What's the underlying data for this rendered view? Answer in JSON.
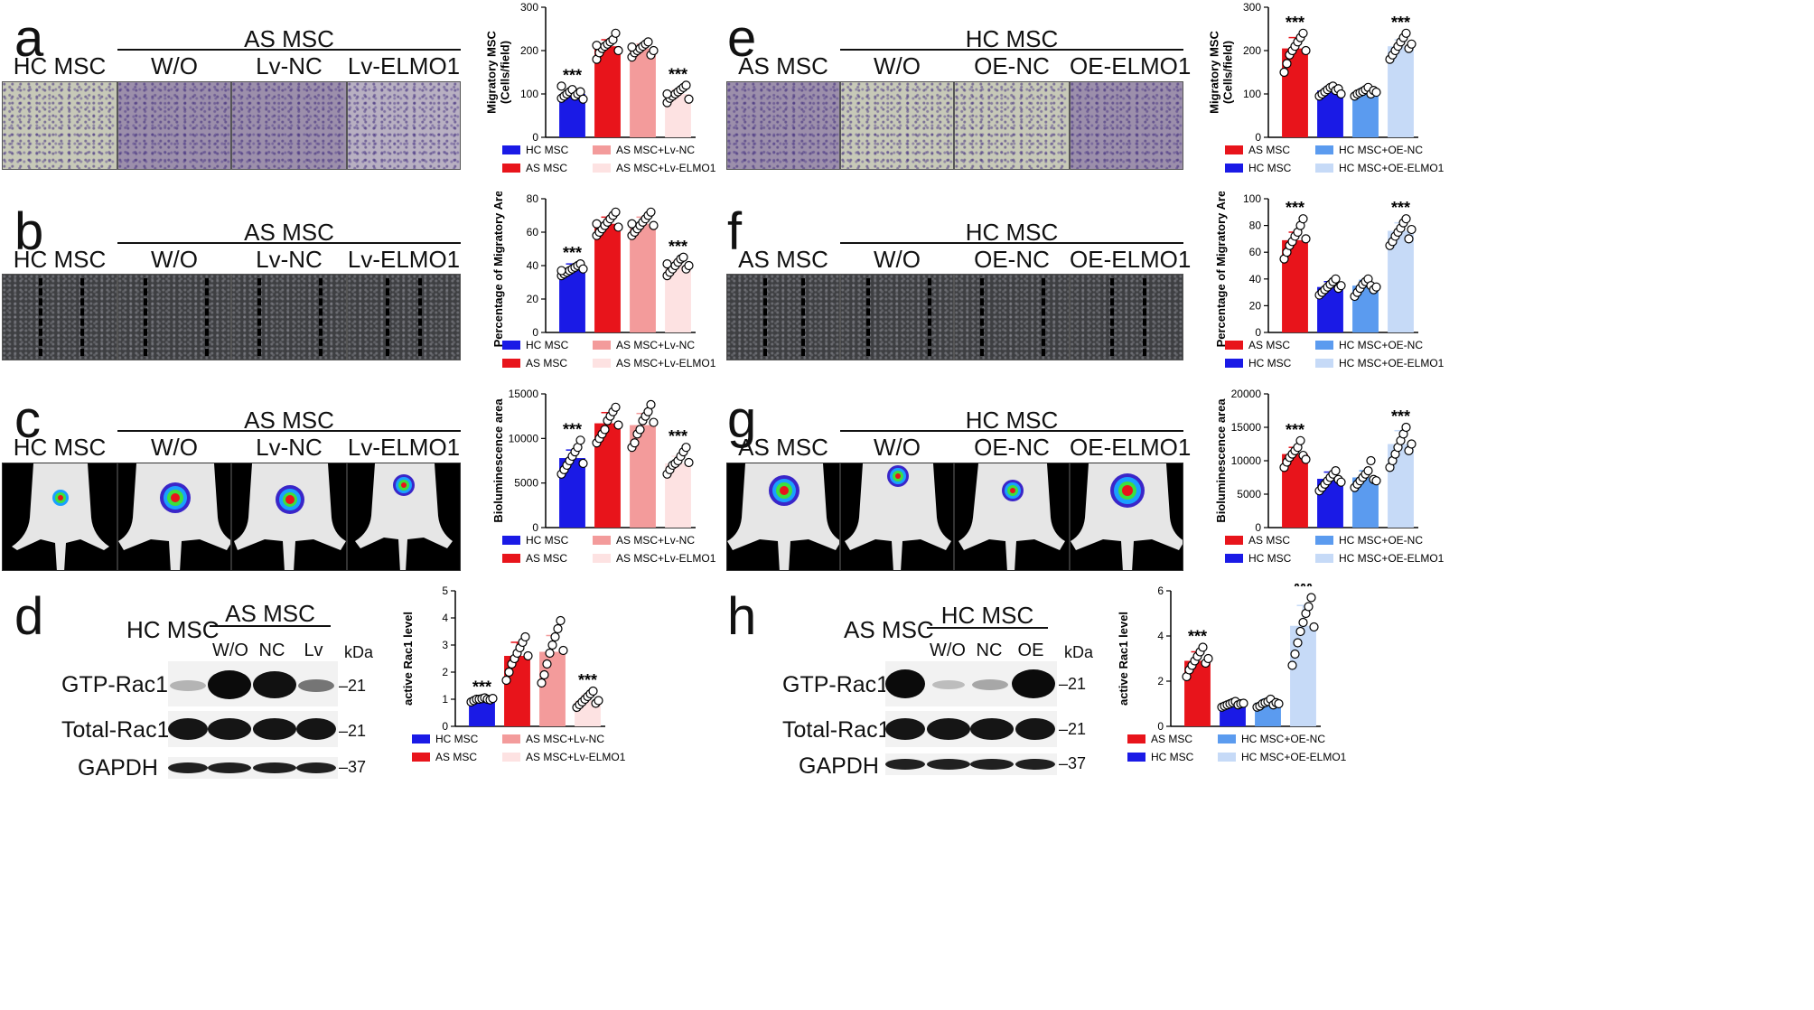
{
  "panel_letters": {
    "a": "a",
    "b": "b",
    "c": "c",
    "d": "d",
    "e": "e",
    "f": "f",
    "g": "g",
    "h": "h"
  },
  "left": {
    "control": "HC MSC",
    "group": "AS MSC",
    "lanes": [
      "W/O",
      "Lv-NC",
      "Lv-ELMO1"
    ],
    "blot_lanes": [
      "W/O",
      "NC",
      "Lv"
    ],
    "kda": "kDa"
  },
  "right": {
    "control": "AS MSC",
    "group": "HC MSC",
    "lanes": [
      "W/O",
      "OE-NC",
      "OE-ELMO1"
    ],
    "blot_lanes": [
      "W/O",
      "NC",
      "OE"
    ],
    "kda": "kDa"
  },
  "blot_rows": [
    "GTP-Rac1",
    "Total-Rac1",
    "GAPDH"
  ],
  "blot_markers": [
    "21",
    "21",
    "37"
  ],
  "colors": {
    "left": [
      "#1a1ae6",
      "#e8141b",
      "#f39b9b",
      "#fde2e2"
    ],
    "right": [
      "#e8141b",
      "#1a1ae6",
      "#5b9bef",
      "#c6daf7"
    ]
  },
  "legends": {
    "left": [
      "HC MSC",
      "AS MSC",
      "AS MSC+Lv-NC",
      "AS MSC+Lv-ELMO1"
    ],
    "right": [
      "AS MSC",
      "HC MSC",
      "HC MSC+OE-NC",
      "HC MSC+OE-ELMO1"
    ]
  },
  "stars": "***",
  "chart_data": [
    {
      "id": "a",
      "type": "bar",
      "ylabel": "Migratory MSC\n(Cells/field)",
      "ylim": [
        0,
        300
      ],
      "yticks": [
        "0",
        "100",
        "200",
        "300"
      ],
      "series_names": [
        "HC MSC",
        "AS MSC",
        "AS MSC+Lv-NC",
        "AS MSC+Lv-ELMO1"
      ],
      "values": [
        100,
        210,
        205,
        100
      ],
      "errors": [
        10,
        15,
        10,
        10
      ],
      "stars": [
        true,
        false,
        false,
        true
      ],
      "points": [
        [
          90,
          95,
          100,
          105,
          110,
          95,
          100,
          105,
          88,
          118
        ],
        [
          180,
          195,
          205,
          210,
          215,
          220,
          225,
          240,
          200,
          212
        ],
        [
          185,
          195,
          200,
          205,
          210,
          215,
          220,
          190,
          200,
          208
        ],
        [
          80,
          90,
          95,
          100,
          105,
          110,
          115,
          120,
          88,
          100
        ]
      ]
    },
    {
      "id": "b",
      "type": "bar",
      "ylabel": "Percentage of Migratory Area",
      "ylim": [
        0,
        80
      ],
      "yticks": [
        "0",
        "20",
        "40",
        "60",
        "80"
      ],
      "series_names": [
        "HC MSC",
        "AS MSC",
        "AS MSC+Lv-NC",
        "AS MSC+Lv-ELMO1"
      ],
      "values": [
        38,
        65,
        65,
        40
      ],
      "errors": [
        3,
        4,
        4,
        3
      ],
      "stars": [
        true,
        false,
        false,
        true
      ],
      "points": [
        [
          34,
          35,
          36,
          37,
          38,
          39,
          40,
          41,
          38,
          37
        ],
        [
          58,
          60,
          62,
          64,
          66,
          68,
          70,
          72,
          63,
          65
        ],
        [
          58,
          60,
          62,
          64,
          66,
          68,
          70,
          72,
          64,
          65
        ],
        [
          34,
          36,
          38,
          40,
          42,
          44,
          45,
          38,
          40,
          41
        ]
      ]
    },
    {
      "id": "c",
      "type": "bar",
      "ylabel": "Bioluminescence area",
      "ylim": [
        0,
        15000
      ],
      "yticks": [
        "0",
        "5000",
        "10000",
        "15000"
      ],
      "series_names": [
        "HC MSC",
        "AS MSC",
        "AS MSC+Lv-NC",
        "AS MSC+Lv-ELMO1"
      ],
      "values": [
        7800,
        11700,
        11500,
        7200
      ],
      "errors": [
        900,
        1200,
        1300,
        800
      ],
      "stars": [
        true,
        false,
        false,
        true
      ],
      "points": [
        [
          6000,
          6500,
          7000,
          7500,
          8000,
          8500,
          9000,
          9800,
          7200
        ],
        [
          9500,
          10000,
          10500,
          11000,
          12000,
          12500,
          13000,
          13500,
          11500
        ],
        [
          9000,
          9500,
          10500,
          11000,
          12000,
          12500,
          13000,
          13800,
          11800
        ],
        [
          6000,
          6500,
          7000,
          7200,
          7500,
          8000,
          8500,
          9000,
          7300
        ]
      ]
    },
    {
      "id": "d",
      "type": "bar",
      "ylabel": "active Rac1 level",
      "ylim": [
        0,
        5
      ],
      "yticks": [
        "0",
        "1",
        "2",
        "3",
        "4",
        "5"
      ],
      "series_names": [
        "HC MSC",
        "AS MSC",
        "AS MSC+Lv-NC",
        "AS MSC+Lv-ELMO1"
      ],
      "values": [
        1.0,
        2.6,
        2.75,
        0.95
      ],
      "errors": [
        0.05,
        0.5,
        0.6,
        0.2
      ],
      "stars": [
        true,
        false,
        false,
        true
      ],
      "points": [
        [
          0.9,
          0.95,
          1.0,
          1.0,
          1.02,
          1.05,
          1.0,
          0.98,
          1.03
        ],
        [
          1.7,
          2.0,
          2.3,
          2.5,
          2.7,
          2.9,
          3.1,
          3.3,
          2.6
        ],
        [
          1.6,
          1.9,
          2.3,
          2.7,
          3.0,
          3.3,
          3.6,
          3.9,
          2.8
        ],
        [
          0.7,
          0.8,
          0.9,
          1.0,
          1.1,
          1.2,
          1.3,
          0.85,
          0.95
        ]
      ]
    },
    {
      "id": "e",
      "type": "bar",
      "ylabel": "Migratory MSC\n(Cells/field)",
      "ylim": [
        0,
        300
      ],
      "yticks": [
        "0",
        "100",
        "200",
        "300"
      ],
      "series_names": [
        "AS MSC",
        "HC MSC",
        "HC MSC+OE-NC",
        "HC MSC+OE-ELMO1"
      ],
      "values": [
        205,
        108,
        105,
        210
      ],
      "errors": [
        25,
        8,
        8,
        15
      ],
      "stars": [
        true,
        false,
        false,
        true
      ],
      "points": [
        [
          150,
          170,
          190,
          200,
          210,
          220,
          230,
          240,
          200
        ],
        [
          95,
          100,
          105,
          110,
          115,
          118,
          108,
          112,
          100
        ],
        [
          95,
          100,
          103,
          106,
          110,
          115,
          100,
          108,
          104
        ],
        [
          180,
          190,
          200,
          210,
          220,
          230,
          240,
          205,
          215
        ]
      ]
    },
    {
      "id": "f",
      "type": "bar",
      "ylabel": "Percentage of Migratory Area",
      "ylim": [
        0,
        100
      ],
      "yticks": [
        "0",
        "20",
        "40",
        "60",
        "80",
        "100"
      ],
      "series_names": [
        "AS MSC",
        "HC MSC",
        "HC MSC+OE-NC",
        "HC MSC+OE-ELMO1"
      ],
      "values": [
        69,
        34,
        35,
        76
      ],
      "errors": [
        6,
        4,
        4,
        6
      ],
      "stars": [
        true,
        false,
        false,
        true
      ],
      "points": [
        [
          55,
          60,
          65,
          68,
          72,
          75,
          80,
          85,
          70
        ],
        [
          28,
          30,
          32,
          34,
          36,
          38,
          40,
          33,
          35
        ],
        [
          27,
          30,
          33,
          36,
          38,
          40,
          35,
          32,
          34
        ],
        [
          65,
          68,
          72,
          75,
          78,
          82,
          85,
          70,
          77
        ]
      ]
    },
    {
      "id": "g",
      "type": "bar",
      "ylabel": "Bioluminescence area",
      "ylim": [
        0,
        20000
      ],
      "yticks": [
        "0",
        "5000",
        "10000",
        "15000",
        "20000"
      ],
      "series_names": [
        "AS MSC",
        "HC MSC",
        "HC MSC+OE-NC",
        "HC MSC+OE-ELMO1"
      ],
      "values": [
        11000,
        7300,
        7500,
        12500
      ],
      "errors": [
        1000,
        1000,
        1000,
        2000
      ],
      "stars": [
        true,
        false,
        false,
        true
      ],
      "points": [
        [
          9000,
          9800,
          10500,
          11000,
          11500,
          12000,
          13000,
          10800,
          10200
        ],
        [
          5500,
          6000,
          6500,
          7000,
          7500,
          8000,
          8500,
          7200,
          6800
        ],
        [
          6000,
          6500,
          7000,
          7500,
          8000,
          8500,
          10000,
          7200,
          7000
        ],
        [
          9000,
          10000,
          11000,
          12000,
          13000,
          14000,
          15000,
          11500,
          12500
        ]
      ]
    },
    {
      "id": "h",
      "type": "bar",
      "ylabel": "active Rac1 level",
      "ylim": [
        0,
        6
      ],
      "yticks": [
        "0",
        "2",
        "4",
        "6"
      ],
      "series_names": [
        "AS MSC",
        "HC MSC",
        "HC MSC+OE-NC",
        "HC MSC+OE-ELMO1"
      ],
      "values": [
        2.9,
        1.0,
        1.05,
        4.45
      ],
      "errors": [
        0.4,
        0.08,
        0.15,
        0.9
      ],
      "stars": [
        true,
        false,
        false,
        true
      ],
      "points": [
        [
          2.2,
          2.5,
          2.7,
          2.9,
          3.1,
          3.3,
          3.5,
          2.8,
          3.0
        ],
        [
          0.85,
          0.9,
          0.95,
          1.0,
          1.05,
          1.1,
          0.95,
          1.0,
          1.02
        ],
        [
          0.85,
          0.9,
          1.0,
          1.05,
          1.1,
          1.2,
          0.95,
          1.05,
          1.0
        ],
        [
          2.7,
          3.2,
          3.7,
          4.2,
          4.6,
          5.0,
          5.3,
          5.7,
          4.4
        ]
      ]
    }
  ]
}
